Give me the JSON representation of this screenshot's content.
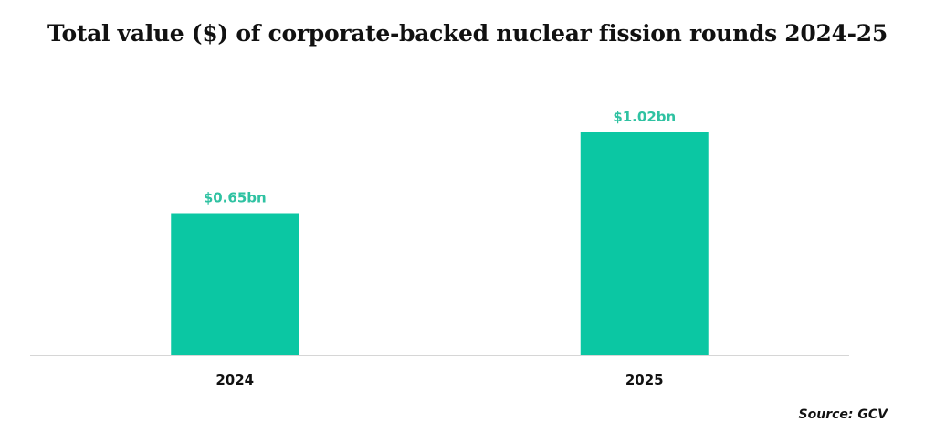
{
  "chart_data": {
    "type": "bar",
    "title": "Total value ($) of corporate-backed nuclear fission rounds 2024-25",
    "categories": [
      "2024",
      "2025"
    ],
    "values": [
      0.65,
      1.02
    ],
    "data_labels": [
      "$0.65bn",
      "$1.02bn"
    ],
    "xlabel": "",
    "ylabel": "",
    "ylim": [
      0,
      1.3
    ],
    "grid": false,
    "y_axis_shown": false,
    "bar_color": "#0bc7a3",
    "label_color": "#2fc2a2",
    "source": "Source: GCV"
  }
}
